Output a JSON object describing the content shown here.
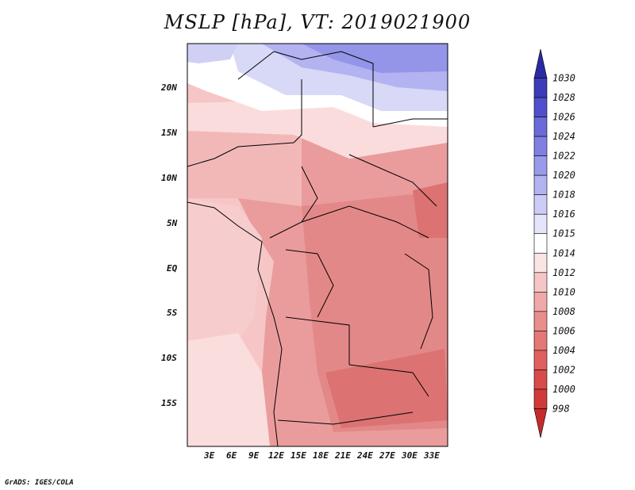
{
  "title": "MSLP [hPa], VT: 2019021900",
  "credit": "GrADS: IGES/COLA",
  "lat_labels": [
    "20N",
    "15N",
    "10N",
    "5N",
    "EQ",
    "5S",
    "10S",
    "15S"
  ],
  "lon_labels": [
    "3E",
    "6E",
    "9E",
    "12E",
    "15E",
    "18E",
    "21E",
    "24E",
    "27E",
    "30E",
    "33E"
  ],
  "colorbar": {
    "levels": [
      "998",
      "1000",
      "1002",
      "1004",
      "1006",
      "1008",
      "1010",
      "1012",
      "1014",
      "1015",
      "1016",
      "1018",
      "1020",
      "1022",
      "1024",
      "1026",
      "1028",
      "1030"
    ],
    "colors": [
      "#c62a2a",
      "#d03a3a",
      "#d94b4b",
      "#e06060",
      "#e57777",
      "#ea8d8d",
      "#f0a8a8",
      "#f6c6c6",
      "#fbe4e4",
      "#ffffff",
      "#e4e4fa",
      "#ccccf6",
      "#b3b3f1",
      "#9a9aeb",
      "#8080e3",
      "#6a6ad9",
      "#5050cc",
      "#3c3cb8",
      "#2a2aa4"
    ]
  },
  "map": {
    "dominant_field": "mslp",
    "colors": {
      "high_north": "#8f8fe6",
      "mid_north": "#c8c8f4",
      "neutral": "#fdeeee",
      "low_land": "#e9a6a6",
      "deep_low": "#dd7777"
    }
  }
}
